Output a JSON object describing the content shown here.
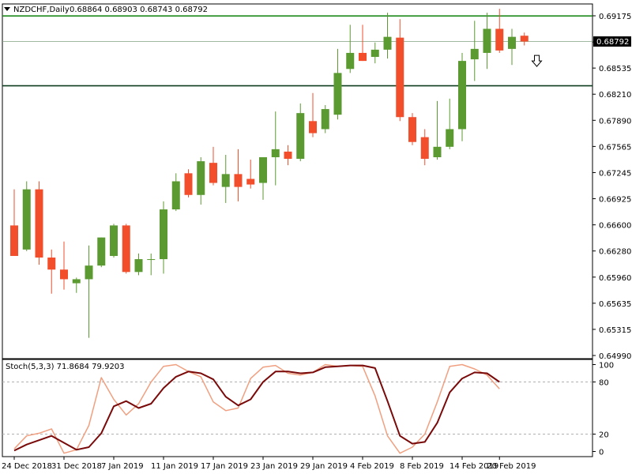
{
  "header": {
    "symbol": "NZDCHF,Daily",
    "ohlc": "0.68864 0.68903 0.68743 0.68792"
  },
  "colors": {
    "bull": "#5b9a31",
    "bear": "#f24e2c",
    "support_line": "#0f3d1f",
    "resistance_line": "#1e8a1e",
    "stoch_main": "#7a0a0a",
    "stoch_signal": "#f0a080"
  },
  "chart_data": [
    {
      "type": "candlestick",
      "title": "NZDCHF,Daily",
      "ohlc_label": "0.68864 0.68903 0.68743 0.68792",
      "ylim": [
        0.6485,
        0.6925
      ],
      "y_ticks": [
        "0.69175",
        "0.68855",
        "0.68535",
        "0.68210",
        "0.67890",
        "0.67565",
        "0.67245",
        "0.66925",
        "0.66600",
        "0.66280",
        "0.65960",
        "0.65635",
        "0.65315",
        "0.64990"
      ],
      "x_ticks": [
        {
          "index": 0,
          "label": "24 Dec 2018"
        },
        {
          "index": 4,
          "label": "31 Dec 2018"
        },
        {
          "index": 8,
          "label": "7 Jan 2019"
        },
        {
          "index": 12,
          "label": "11 Jan 2019"
        },
        {
          "index": 16,
          "label": "17 Jan 2019"
        },
        {
          "index": 20,
          "label": "23 Jan 2019"
        },
        {
          "index": 24,
          "label": "29 Jan 2019"
        },
        {
          "index": 28,
          "label": "4 Feb 2019"
        },
        {
          "index": 32,
          "label": "8 Feb 2019"
        },
        {
          "index": 36,
          "label": "14 Feb 2019"
        },
        {
          "index": 39,
          "label": "20 Feb 2019"
        }
      ],
      "current_price": "0.68792",
      "horizontal_lines": [
        {
          "name": "resistance",
          "value": 0.6911
        },
        {
          "name": "support",
          "value": 0.6824
        },
        {
          "name": "current",
          "value": 0.68792
        }
      ],
      "arrow_annotation": {
        "direction": "down",
        "index": 42,
        "value": 0.6855
      },
      "candles": [
        {
          "o": 0.665,
          "h": 0.6695,
          "l": 0.6612,
          "c": 0.6612
        },
        {
          "o": 0.662,
          "h": 0.6705,
          "l": 0.6618,
          "c": 0.6695
        },
        {
          "o": 0.6695,
          "h": 0.6705,
          "l": 0.6601,
          "c": 0.661
        },
        {
          "o": 0.661,
          "h": 0.662,
          "l": 0.6565,
          "c": 0.6595
        },
        {
          "o": 0.6595,
          "h": 0.663,
          "l": 0.657,
          "c": 0.6583
        },
        {
          "o": 0.6578,
          "h": 0.6585,
          "l": 0.6566,
          "c": 0.6583
        },
        {
          "o": 0.6583,
          "h": 0.6625,
          "l": 0.651,
          "c": 0.66
        },
        {
          "o": 0.66,
          "h": 0.6635,
          "l": 0.6598,
          "c": 0.6635
        },
        {
          "o": 0.6612,
          "h": 0.6652,
          "l": 0.661,
          "c": 0.665
        },
        {
          "o": 0.665,
          "h": 0.6652,
          "l": 0.659,
          "c": 0.6592
        },
        {
          "o": 0.6592,
          "h": 0.6615,
          "l": 0.6588,
          "c": 0.6608
        },
        {
          "o": 0.6608,
          "h": 0.6615,
          "l": 0.6588,
          "c": 0.6608
        },
        {
          "o": 0.6608,
          "h": 0.668,
          "l": 0.659,
          "c": 0.667
        },
        {
          "o": 0.667,
          "h": 0.6715,
          "l": 0.6668,
          "c": 0.6705
        },
        {
          "o": 0.6715,
          "h": 0.672,
          "l": 0.6685,
          "c": 0.6688
        },
        {
          "o": 0.6688,
          "h": 0.6735,
          "l": 0.6676,
          "c": 0.673
        },
        {
          "o": 0.6728,
          "h": 0.6748,
          "l": 0.67,
          "c": 0.6703
        },
        {
          "o": 0.6698,
          "h": 0.6738,
          "l": 0.6678,
          "c": 0.6714
        },
        {
          "o": 0.6714,
          "h": 0.6745,
          "l": 0.668,
          "c": 0.6698
        },
        {
          "o": 0.6708,
          "h": 0.6732,
          "l": 0.6696,
          "c": 0.6701
        },
        {
          "o": 0.6703,
          "h": 0.6735,
          "l": 0.6682,
          "c": 0.6735
        },
        {
          "o": 0.6735,
          "h": 0.6792,
          "l": 0.67,
          "c": 0.6745
        },
        {
          "o": 0.6742,
          "h": 0.675,
          "l": 0.6725,
          "c": 0.6733
        },
        {
          "o": 0.6733,
          "h": 0.6802,
          "l": 0.673,
          "c": 0.679
        },
        {
          "o": 0.678,
          "h": 0.6815,
          "l": 0.676,
          "c": 0.6765
        },
        {
          "o": 0.677,
          "h": 0.68,
          "l": 0.6765,
          "c": 0.6795
        },
        {
          "o": 0.6788,
          "h": 0.687,
          "l": 0.6782,
          "c": 0.684
        },
        {
          "o": 0.6845,
          "h": 0.69,
          "l": 0.684,
          "c": 0.6865
        },
        {
          "o": 0.6865,
          "h": 0.69,
          "l": 0.6855,
          "c": 0.6855
        },
        {
          "o": 0.686,
          "h": 0.6878,
          "l": 0.6852,
          "c": 0.6869
        },
        {
          "o": 0.6869,
          "h": 0.6915,
          "l": 0.6858,
          "c": 0.6885
        },
        {
          "o": 0.6884,
          "h": 0.6907,
          "l": 0.678,
          "c": 0.6785
        },
        {
          "o": 0.6785,
          "h": 0.679,
          "l": 0.675,
          "c": 0.6754
        },
        {
          "o": 0.676,
          "h": 0.677,
          "l": 0.6725,
          "c": 0.6733
        },
        {
          "o": 0.6735,
          "h": 0.6805,
          "l": 0.6732,
          "c": 0.6748
        },
        {
          "o": 0.6748,
          "h": 0.6808,
          "l": 0.6745,
          "c": 0.677
        },
        {
          "o": 0.677,
          "h": 0.6865,
          "l": 0.6755,
          "c": 0.6855
        },
        {
          "o": 0.6857,
          "h": 0.6905,
          "l": 0.683,
          "c": 0.687
        },
        {
          "o": 0.6865,
          "h": 0.6915,
          "l": 0.6845,
          "c": 0.6895
        },
        {
          "o": 0.6895,
          "h": 0.692,
          "l": 0.6865,
          "c": 0.6868
        },
        {
          "o": 0.687,
          "h": 0.6895,
          "l": 0.685,
          "c": 0.6885
        },
        {
          "o": 0.68864,
          "h": 0.68903,
          "l": 0.68743,
          "c": 0.68792
        }
      ]
    },
    {
      "type": "line",
      "title": "Stoch(5,3,3) 71.8684 79.9203",
      "ylim": [
        -5,
        105
      ],
      "y_ticks": [
        100,
        80,
        20,
        0
      ],
      "levels": [
        80,
        20
      ],
      "series": [
        {
          "name": "main",
          "values": [
            3,
            18,
            21,
            26,
            -2,
            2,
            30,
            85,
            60,
            42,
            55,
            80,
            98,
            100,
            92,
            86,
            57,
            47,
            50,
            84,
            97,
            99,
            90,
            88,
            91,
            100,
            98,
            99,
            98,
            64,
            18,
            -2,
            5,
            20,
            57,
            98,
            100,
            95,
            88,
            72
          ]
        },
        {
          "name": "signal",
          "values": [
            1,
            8,
            13,
            18,
            10,
            2,
            5,
            21,
            52,
            58,
            50,
            55,
            73,
            86,
            92,
            90,
            83,
            63,
            53,
            60,
            80,
            92,
            92,
            90,
            91,
            97,
            98,
            99,
            99,
            96,
            58,
            18,
            9,
            11,
            33,
            68,
            84,
            91,
            90,
            80
          ]
        }
      ]
    }
  ]
}
